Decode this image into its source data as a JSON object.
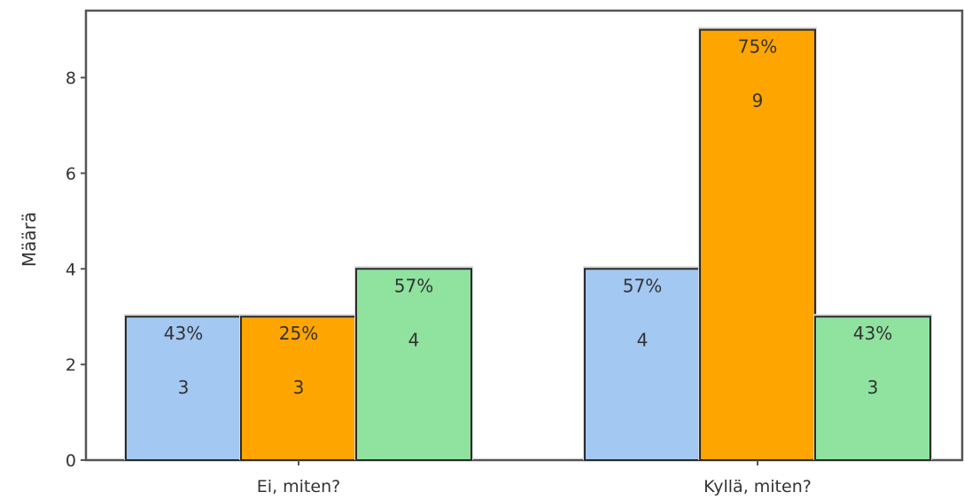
{
  "chart_data": {
    "type": "bar",
    "title": "",
    "xlabel": "",
    "ylabel": "Määrä",
    "ylim": [
      0,
      9.4
    ],
    "yticks": [
      0,
      2,
      4,
      6,
      8
    ],
    "categories": [
      "Ei, miten?",
      "Kyllä, miten?"
    ],
    "series": [
      {
        "values": [
          3,
          4
        ],
        "percent_labels": [
          "43%",
          "57%"
        ],
        "color": "#a3c8f2"
      },
      {
        "values": [
          3,
          9
        ],
        "percent_labels": [
          "25%",
          "75%"
        ],
        "color": "#ffa500"
      },
      {
        "values": [
          4,
          3
        ],
        "percent_labels": [
          "57%",
          "43%"
        ],
        "color": "#8fe39f"
      }
    ],
    "grid": false,
    "legend": "none"
  }
}
